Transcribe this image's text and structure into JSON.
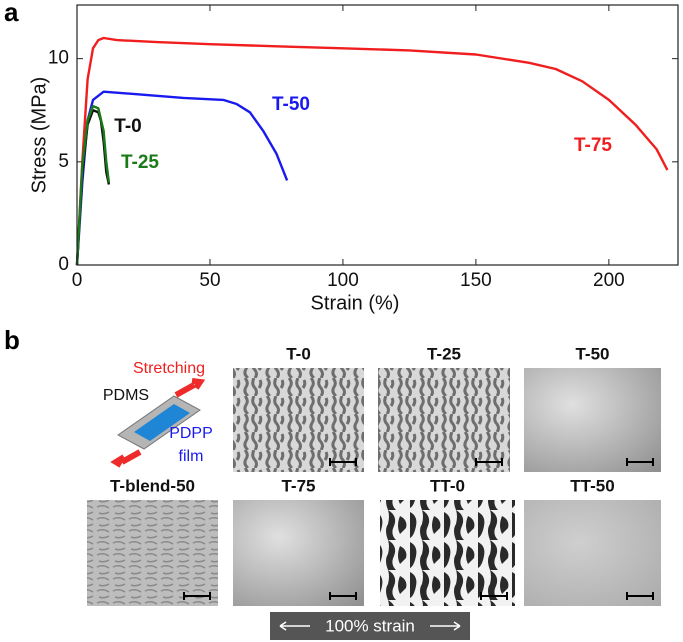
{
  "chart_data": {
    "type": "line",
    "panel": "a",
    "xlabel": "Strain (%)",
    "ylabel": "Stress (MPa)",
    "xlim": [
      0,
      226
    ],
    "ylim": [
      0,
      12.6
    ],
    "xticks": [
      0,
      50,
      100,
      150,
      200
    ],
    "yticks": [
      0,
      5,
      10
    ],
    "series": [
      {
        "name": "T-75",
        "color": "#f01e1e",
        "x": [
          0,
          2,
          4,
          6,
          8,
          10,
          15,
          30,
          50,
          75,
          100,
          125,
          150,
          170,
          180,
          190,
          200,
          210,
          218,
          222
        ],
        "values": [
          0,
          5,
          9,
          10.5,
          10.9,
          11,
          10.9,
          10.8,
          10.7,
          10.6,
          10.5,
          10.4,
          10.2,
          9.8,
          9.5,
          8.9,
          8,
          6.8,
          5.6,
          4.6
        ]
      },
      {
        "name": "T-50",
        "color": "#1a1aee",
        "x": [
          0,
          2,
          4,
          6,
          10,
          20,
          40,
          55,
          60,
          65,
          70,
          75,
          79
        ],
        "values": [
          0,
          4,
          7,
          8,
          8.4,
          8.3,
          8.1,
          8,
          7.8,
          7.4,
          6.5,
          5.4,
          4.1
        ]
      },
      {
        "name": "T-0",
        "color": "#111111",
        "x": [
          0,
          2,
          4,
          6,
          8,
          9,
          10,
          11,
          12
        ],
        "values": [
          0,
          4.5,
          6.8,
          7.5,
          7.4,
          7,
          6,
          4.5,
          3.9
        ]
      },
      {
        "name": "T-25",
        "color": "#1a7a1a",
        "x": [
          0,
          2,
          4,
          6,
          8,
          10,
          11,
          12
        ],
        "values": [
          0,
          4.8,
          7,
          7.7,
          7.6,
          6.5,
          5,
          4
        ]
      }
    ]
  },
  "panel_b": {
    "label": "b",
    "schematic": {
      "stretching": "Stretching",
      "pdms": "PDMS",
      "film_line1": "PDPP",
      "film_line2": "film"
    },
    "images": [
      "T-0",
      "T-25",
      "T-50",
      "T-blend-50",
      "T-75",
      "TT-0",
      "TT-50"
    ],
    "scale": "100% strain"
  }
}
